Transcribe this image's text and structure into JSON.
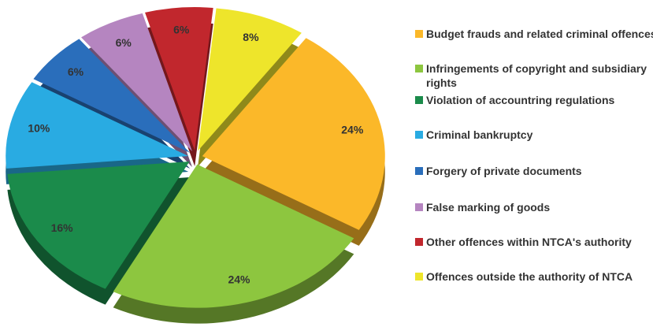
{
  "chart_data": {
    "type": "pie",
    "categories": [
      "Budget frauds and related criminal offences",
      "Infringements of copyright and subsidiary rights",
      "Violation of accountring regulations",
      "Criminal bankruptcy",
      "Forgery of private documents",
      "False marking of goods",
      "Other offences within NTCA's authority",
      "Offences outside the authority of NTCA"
    ],
    "values": [
      24,
      24,
      16,
      10,
      6,
      6,
      6,
      8
    ],
    "value_labels": [
      "24%",
      "24%",
      "16%",
      "10%",
      "6%",
      "6%",
      "6%",
      "8%"
    ],
    "colors": [
      "#fbb829",
      "#8dc63f",
      "#1b8b4b",
      "#29abe2",
      "#2a6ebb",
      "#b585c0",
      "#c1272d",
      "#eee52b"
    ],
    "legend": "right"
  }
}
